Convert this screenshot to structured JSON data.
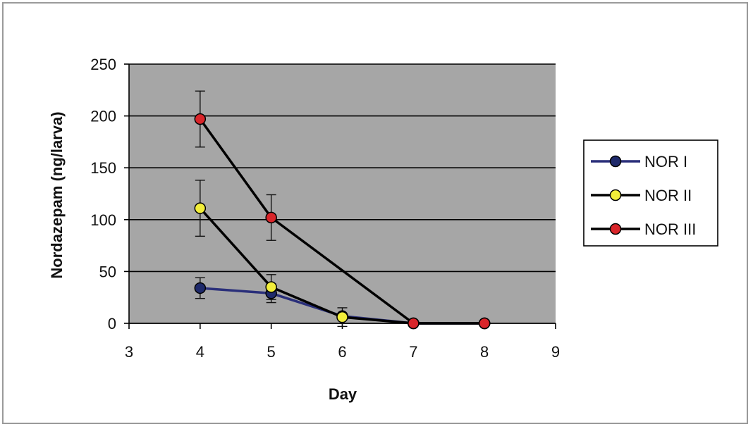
{
  "chart_data": {
    "type": "line",
    "title": "",
    "xlabel": "Day",
    "ylabel": "Nordazepam (ng/larva)",
    "xlim": [
      3,
      9
    ],
    "ylim": [
      0,
      250
    ],
    "xticks": [
      "3",
      "4",
      "5",
      "6",
      "7",
      "8",
      "9"
    ],
    "yticks": [
      "0",
      "50",
      "100",
      "150",
      "200",
      "250"
    ],
    "grid": "horizontal",
    "legend_position": "right",
    "plot_background": "#a6a6a6",
    "series": [
      {
        "name": "NOR I",
        "line_color": "#2a2f7a",
        "marker_color": "#1f2a6b",
        "x": [
          4,
          5,
          6,
          7,
          8
        ],
        "y": [
          34,
          29,
          7,
          0,
          0
        ],
        "error": [
          10,
          9,
          0,
          0,
          0
        ]
      },
      {
        "name": "NOR II",
        "line_color": "#000000",
        "marker_color": "#f2ee3a",
        "x": [
          4,
          5,
          6,
          7,
          8
        ],
        "y": [
          111,
          35,
          6,
          0,
          0
        ],
        "error": [
          27,
          12,
          9,
          0,
          0
        ]
      },
      {
        "name": "NOR III",
        "line_color": "#000000",
        "marker_color": "#d9252a",
        "x": [
          4,
          5,
          7,
          8
        ],
        "y": [
          197,
          102,
          0,
          0
        ],
        "error": [
          27,
          22,
          0,
          0
        ]
      }
    ]
  }
}
